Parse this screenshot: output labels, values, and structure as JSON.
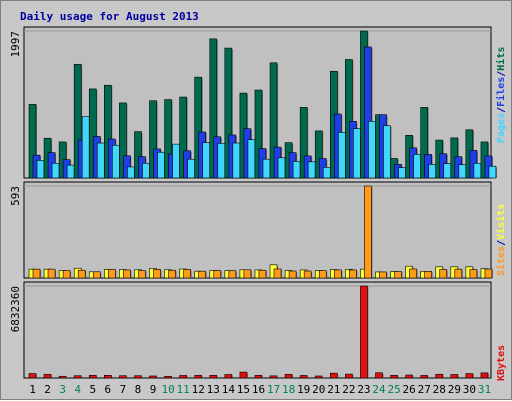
{
  "chart_data": {
    "type": "bar",
    "title": "Daily usage for August 2013",
    "categories": [
      "1",
      "2",
      "3",
      "4",
      "5",
      "6",
      "7",
      "8",
      "9",
      "10",
      "11",
      "12",
      "13",
      "14",
      "15",
      "16",
      "17",
      "18",
      "19",
      "20",
      "21",
      "22",
      "23",
      "24",
      "25",
      "26",
      "27",
      "28",
      "29",
      "30",
      "31"
    ],
    "weekend_days": [
      "3",
      "4",
      "10",
      "11",
      "17",
      "18",
      "24",
      "25",
      "31"
    ],
    "panels": [
      {
        "ymax_label": "1997",
        "ylim": [
          0,
          1997
        ],
        "series": [
          {
            "name": "Hits",
            "color": "#006a4e",
            "values": [
              1000,
              540,
              490,
              1545,
              1210,
              1260,
              1020,
              630,
              1050,
              1065,
              1100,
              1370,
              1890,
              1765,
              1153,
              1195,
              1565,
              480,
              960,
              640,
              1450,
              1610,
              1997,
              860,
              265,
              580,
              960,
              515,
              545,
              655,
              490
            ]
          },
          {
            "name": "Files",
            "color": "#1e3ee8",
            "values": [
              310,
              345,
              250,
              515,
              565,
              530,
              302,
              290,
              395,
              325,
              370,
              625,
              560,
              585,
              670,
              400,
              420,
              345,
              300,
              265,
              870,
              770,
              1780,
              860,
              185,
              410,
              320,
              330,
              290,
              375,
              300
            ]
          },
          {
            "name": "Pages",
            "color": "#40d7ff",
            "values": [
              240,
              200,
              175,
              835,
              475,
              445,
              150,
              200,
              350,
              460,
              255,
              480,
              470,
              475,
              520,
              255,
              275,
              225,
              220,
              145,
              620,
              670,
              770,
              710,
              140,
              320,
              185,
              195,
              180,
              200,
              160
            ]
          }
        ]
      },
      {
        "ymax_label": "593",
        "ylim": [
          0,
          593
        ],
        "series": [
          {
            "name": "Visits",
            "color": "#ffff33",
            "values": [
              57,
              57,
              48,
              63,
              40,
              55,
              54,
              53,
              62,
              53,
              58,
              44,
              48,
              47,
              53,
              52,
              85,
              48,
              52,
              48,
              54,
              56,
              57,
              39,
              42,
              76,
              43,
              72,
              72,
              72,
              60
            ]
          },
          {
            "name": "Sites",
            "color": "#ff9a1a",
            "values": [
              57,
              57,
              48,
              50,
              40,
              55,
              52,
              48,
              55,
              50,
              55,
              44,
              48,
              47,
              53,
              50,
              58,
              45,
              45,
              48,
              52,
              52,
              593,
              39,
              42,
              58,
              43,
              55,
              57,
              54,
              58
            ]
          }
        ]
      },
      {
        "ymax_label": "6832360",
        "ylim": [
          0,
          6832360
        ],
        "series": [
          {
            "name": "KBytes",
            "color": "#e01010",
            "values": [
              330000,
              270000,
              130000,
              170000,
              200000,
              200000,
              170000,
              170000,
              150000,
              130000,
              190000,
              200000,
              200000,
              260000,
              440000,
              200000,
              160000,
              270000,
              190000,
              150000,
              360000,
              290000,
              6832360,
              390000,
              200000,
              220000,
              190000,
              280000,
              260000,
              330000,
              380000
            ]
          }
        ]
      }
    ],
    "legend_right": [
      {
        "text": "Pages",
        "color": "#40d7ff"
      },
      {
        "text": "/",
        "color": "#0000a0"
      },
      {
        "text": "Files",
        "color": "#1e3ee8"
      },
      {
        "text": "/",
        "color": "#0000a0"
      },
      {
        "text": "Hits",
        "color": "#006a4e"
      },
      {
        "text": "Sites",
        "color": "#ff9a1a"
      },
      {
        "text": "/",
        "color": "#0000a0"
      },
      {
        "text": "Visits",
        "color": "#ffff33"
      },
      {
        "text": "KBytes",
        "color": "#e01010"
      }
    ],
    "colors": {
      "plot_bg": "#c0c0c0",
      "frame_bg": "#c8c8c8",
      "weekday_label": "#000000",
      "weekend_label": "#00805f"
    }
  }
}
